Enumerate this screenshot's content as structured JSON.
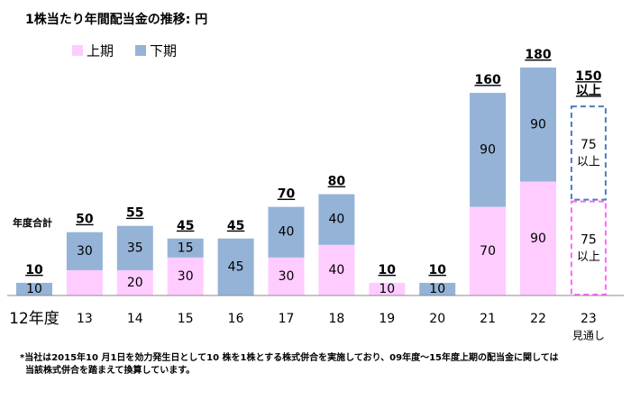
{
  "chart_data": {
    "type": "stacked_bar",
    "title": "1株当たり年間配当金の推移: 円",
    "categories": [
      "12年度",
      "13",
      "14",
      "15",
      "16",
      "17",
      "18",
      "19",
      "20",
      "21",
      "22",
      "23"
    ],
    "category_notes": [
      null,
      null,
      null,
      null,
      null,
      null,
      null,
      null,
      null,
      null,
      null,
      "見通し"
    ],
    "series": [
      {
        "name": "上期",
        "color": "#ffccff",
        "outline": "#ff66ff",
        "values": [
          null,
          20,
          20,
          30,
          null,
          30,
          40,
          10,
          null,
          70,
          90,
          75
        ],
        "show_labels": [
          true,
          false,
          true,
          true,
          true,
          true,
          true,
          true,
          true,
          true,
          true,
          true
        ],
        "notes": [
          null,
          null,
          null,
          null,
          null,
          null,
          null,
          null,
          null,
          null,
          null,
          "以上"
        ]
      },
      {
        "name": "下期",
        "color": "#95b3d7",
        "outline": "#4a7ebb",
        "values": [
          10,
          30,
          35,
          15,
          45,
          40,
          40,
          null,
          10,
          90,
          90,
          75
        ],
        "show_labels": [
          true,
          true,
          true,
          true,
          true,
          true,
          true,
          true,
          true,
          true,
          true,
          true
        ],
        "notes": [
          null,
          null,
          null,
          null,
          null,
          null,
          null,
          null,
          null,
          null,
          null,
          "以上"
        ]
      }
    ],
    "totals": [
      10,
      50,
      55,
      45,
      45,
      70,
      80,
      10,
      10,
      160,
      180,
      150
    ],
    "total_notes": [
      null,
      null,
      null,
      null,
      null,
      null,
      null,
      null,
      null,
      null,
      null,
      "以上"
    ],
    "projected": [
      false,
      false,
      false,
      false,
      false,
      false,
      false,
      false,
      false,
      false,
      false,
      true
    ],
    "totals_caption": "年度合計",
    "ylim": [
      0,
      180
    ],
    "footnote": [
      "*当社は2015年10 月1日を効力発生日として10 株を1株とする株式併合を実施しており、09年度～15年度上期の配当金に関しては",
      "当該株式併合を踏まえて換算しています。"
    ]
  }
}
